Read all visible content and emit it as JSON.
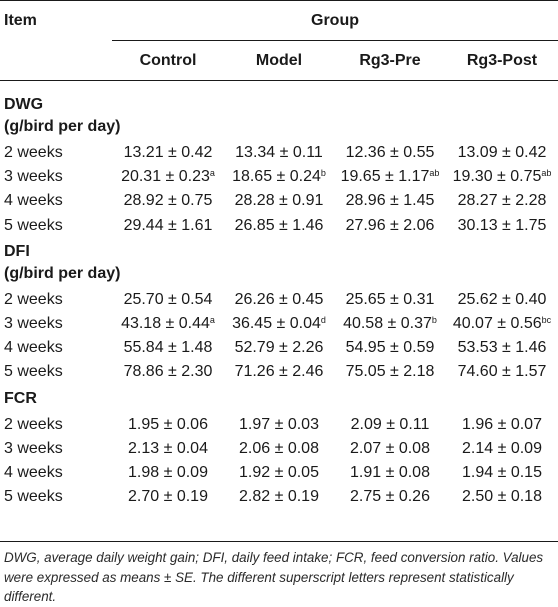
{
  "header": {
    "item": "Item",
    "group": "Group",
    "columns": [
      "Control",
      "Model",
      "Rg3-Pre",
      "Rg3-Post"
    ]
  },
  "sections": [
    {
      "title_line1": "DWG",
      "title_line2": "(g/bird per day)",
      "rows": [
        {
          "label": "2 weeks",
          "cells": [
            {
              "v": "13.21 ± 0.42",
              "s": ""
            },
            {
              "v": "13.34 ± 0.11",
              "s": ""
            },
            {
              "v": "12.36 ± 0.55",
              "s": ""
            },
            {
              "v": "13.09 ± 0.42",
              "s": ""
            }
          ]
        },
        {
          "label": "3 weeks",
          "cells": [
            {
              "v": "20.31 ± 0.23",
              "s": "a"
            },
            {
              "v": "18.65 ± 0.24",
              "s": "b"
            },
            {
              "v": "19.65 ± 1.17",
              "s": "ab"
            },
            {
              "v": "19.30 ± 0.75",
              "s": "ab"
            }
          ]
        },
        {
          "label": "4 weeks",
          "cells": [
            {
              "v": "28.92 ± 0.75",
              "s": ""
            },
            {
              "v": "28.28 ± 0.91",
              "s": ""
            },
            {
              "v": "28.96 ± 1.45",
              "s": ""
            },
            {
              "v": "28.27 ± 2.28",
              "s": ""
            }
          ]
        },
        {
          "label": "5 weeks",
          "cells": [
            {
              "v": "29.44 ± 1.61",
              "s": ""
            },
            {
              "v": "26.85 ± 1.46",
              "s": ""
            },
            {
              "v": "27.96 ± 2.06",
              "s": ""
            },
            {
              "v": "30.13 ± 1.75",
              "s": ""
            }
          ]
        }
      ]
    },
    {
      "title_line1": "DFI",
      "title_line2": "(g/bird per day)",
      "rows": [
        {
          "label": "2 weeks",
          "cells": [
            {
              "v": "25.70 ± 0.54",
              "s": ""
            },
            {
              "v": "26.26 ± 0.45",
              "s": ""
            },
            {
              "v": "25.65 ± 0.31",
              "s": ""
            },
            {
              "v": "25.62 ± 0.40",
              "s": ""
            }
          ]
        },
        {
          "label": "3 weeks",
          "cells": [
            {
              "v": "43.18 ± 0.44",
              "s": "a"
            },
            {
              "v": "36.45 ± 0.04",
              "s": "d"
            },
            {
              "v": "40.58 ± 0.37",
              "s": "b"
            },
            {
              "v": "40.07 ± 0.56",
              "s": "bc"
            }
          ]
        },
        {
          "label": "4 weeks",
          "cells": [
            {
              "v": "55.84 ± 1.48",
              "s": ""
            },
            {
              "v": "52.79 ± 2.26",
              "s": ""
            },
            {
              "v": "54.95 ± 0.59",
              "s": ""
            },
            {
              "v": "53.53 ± 1.46",
              "s": ""
            }
          ]
        },
        {
          "label": "5 weeks",
          "cells": [
            {
              "v": "78.86 ± 2.30",
              "s": ""
            },
            {
              "v": "71.26 ± 2.46",
              "s": ""
            },
            {
              "v": "75.05 ± 2.18",
              "s": ""
            },
            {
              "v": "74.60 ± 1.57",
              "s": ""
            }
          ]
        }
      ]
    },
    {
      "title_line1": "FCR",
      "title_line2": "",
      "rows": [
        {
          "label": "2 weeks",
          "cells": [
            {
              "v": "1.95 ± 0.06",
              "s": ""
            },
            {
              "v": "1.97 ± 0.03",
              "s": ""
            },
            {
              "v": "2.09 ± 0.11",
              "s": ""
            },
            {
              "v": "1.96 ± 0.07",
              "s": ""
            }
          ]
        },
        {
          "label": "3 weeks",
          "cells": [
            {
              "v": "2.13 ± 0.04",
              "s": ""
            },
            {
              "v": "2.06 ± 0.08",
              "s": ""
            },
            {
              "v": "2.07 ± 0.08",
              "s": ""
            },
            {
              "v": "2.14 ± 0.09",
              "s": ""
            }
          ]
        },
        {
          "label": "4 weeks",
          "cells": [
            {
              "v": "1.98 ± 0.09",
              "s": ""
            },
            {
              "v": "1.92 ± 0.05",
              "s": ""
            },
            {
              "v": "1.91 ± 0.08",
              "s": ""
            },
            {
              "v": "1.94 ± 0.15",
              "s": ""
            }
          ]
        },
        {
          "label": "5 weeks",
          "cells": [
            {
              "v": "2.70 ± 0.19",
              "s": ""
            },
            {
              "v": "2.82 ± 0.19",
              "s": ""
            },
            {
              "v": "2.75 ± 0.26",
              "s": ""
            },
            {
              "v": "2.50 ± 0.18",
              "s": ""
            }
          ]
        }
      ]
    }
  ],
  "footnote": "DWG, average daily weight gain; DFI, daily feed intake; FCR, feed conversion ratio. Values were expressed as means ± SE. The different superscript letters represent statistically different."
}
